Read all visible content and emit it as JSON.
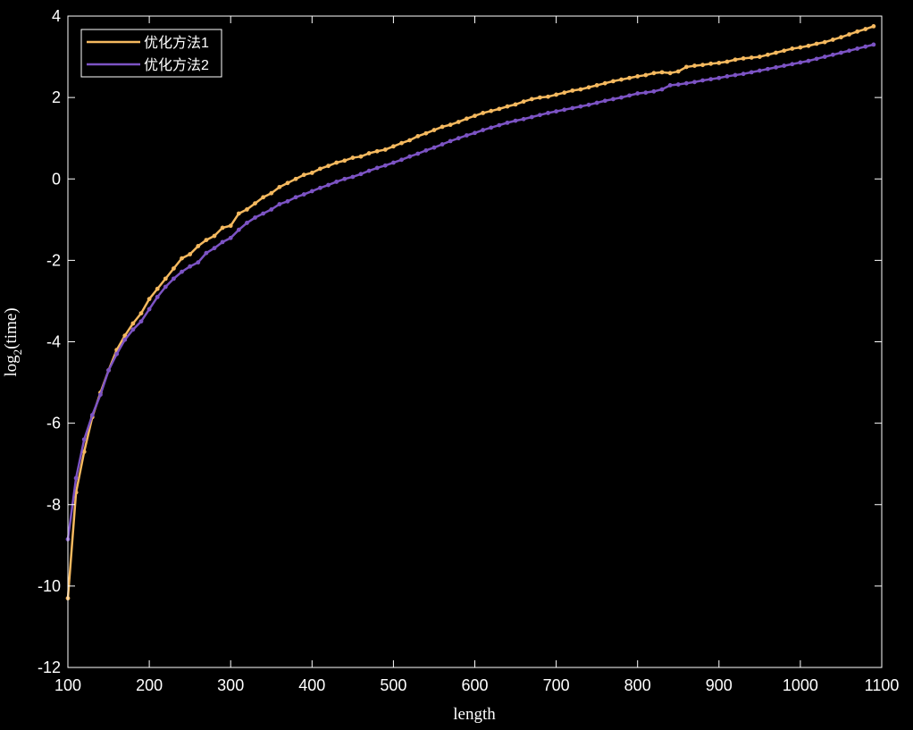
{
  "chart_data": {
    "type": "line",
    "xlabel": "length",
    "ylabel_main": "log",
    "ylabel_sub": "2",
    "ylabel_rest": "(time)",
    "xlim": [
      100,
      1100
    ],
    "ylim": [
      -12,
      4
    ],
    "xticks": [
      100,
      200,
      300,
      400,
      500,
      600,
      700,
      800,
      900,
      1000,
      1100
    ],
    "yticks": [
      -12,
      -10,
      -8,
      -6,
      -4,
      -2,
      0,
      2,
      4
    ],
    "grid": false,
    "legend_position": "top-left",
    "x": [
      100,
      110,
      120,
      130,
      140,
      150,
      160,
      170,
      180,
      190,
      200,
      210,
      220,
      230,
      240,
      250,
      260,
      270,
      280,
      290,
      300,
      310,
      320,
      330,
      340,
      350,
      360,
      370,
      380,
      390,
      400,
      410,
      420,
      430,
      440,
      450,
      460,
      470,
      480,
      490,
      500,
      510,
      520,
      530,
      540,
      550,
      560,
      570,
      580,
      590,
      600,
      610,
      620,
      630,
      640,
      650,
      660,
      670,
      680,
      690,
      700,
      710,
      720,
      730,
      740,
      750,
      760,
      770,
      780,
      790,
      800,
      810,
      820,
      830,
      840,
      850,
      860,
      870,
      880,
      890,
      900,
      910,
      920,
      930,
      940,
      950,
      960,
      970,
      980,
      990,
      1000,
      1010,
      1020,
      1030,
      1040,
      1050,
      1060,
      1070,
      1080,
      1090
    ],
    "series": [
      {
        "name": "优化方法1",
        "color": "#f5b95f",
        "values": [
          -10.3,
          -7.7,
          -6.7,
          -5.85,
          -5.25,
          -4.7,
          -4.2,
          -3.85,
          -3.55,
          -3.3,
          -2.95,
          -2.7,
          -2.45,
          -2.2,
          -1.95,
          -1.85,
          -1.65,
          -1.5,
          -1.4,
          -1.2,
          -1.15,
          -0.85,
          -0.75,
          -0.6,
          -0.45,
          -0.35,
          -0.2,
          -0.1,
          0.0,
          0.1,
          0.15,
          0.25,
          0.32,
          0.4,
          0.45,
          0.52,
          0.55,
          0.63,
          0.68,
          0.72,
          0.8,
          0.88,
          0.95,
          1.05,
          1.12,
          1.2,
          1.28,
          1.33,
          1.4,
          1.48,
          1.55,
          1.62,
          1.67,
          1.72,
          1.78,
          1.83,
          1.9,
          1.96,
          2.0,
          2.02,
          2.07,
          2.12,
          2.17,
          2.2,
          2.25,
          2.3,
          2.35,
          2.4,
          2.44,
          2.48,
          2.52,
          2.55,
          2.6,
          2.62,
          2.6,
          2.64,
          2.75,
          2.78,
          2.8,
          2.83,
          2.85,
          2.88,
          2.93,
          2.96,
          2.98,
          3.0,
          3.05,
          3.1,
          3.15,
          3.2,
          3.23,
          3.27,
          3.32,
          3.36,
          3.42,
          3.48,
          3.55,
          3.62,
          3.68,
          3.75
        ]
      },
      {
        "name": "优化方法2",
        "color": "#7c53c4",
        "values": [
          -8.85,
          -7.35,
          -6.4,
          -5.8,
          -5.3,
          -4.7,
          -4.3,
          -3.95,
          -3.7,
          -3.5,
          -3.2,
          -2.9,
          -2.65,
          -2.45,
          -2.28,
          -2.15,
          -2.05,
          -1.82,
          -1.7,
          -1.55,
          -1.45,
          -1.25,
          -1.08,
          -0.95,
          -0.85,
          -0.75,
          -0.62,
          -0.55,
          -0.45,
          -0.38,
          -0.3,
          -0.22,
          -0.15,
          -0.07,
          0.0,
          0.05,
          0.12,
          0.2,
          0.27,
          0.33,
          0.4,
          0.47,
          0.55,
          0.62,
          0.7,
          0.77,
          0.85,
          0.93,
          1.0,
          1.07,
          1.13,
          1.2,
          1.26,
          1.32,
          1.38,
          1.43,
          1.47,
          1.52,
          1.57,
          1.62,
          1.66,
          1.7,
          1.74,
          1.78,
          1.82,
          1.87,
          1.92,
          1.96,
          2.0,
          2.05,
          2.1,
          2.12,
          2.15,
          2.2,
          2.3,
          2.32,
          2.35,
          2.38,
          2.42,
          2.45,
          2.48,
          2.52,
          2.55,
          2.58,
          2.62,
          2.66,
          2.7,
          2.74,
          2.78,
          2.82,
          2.86,
          2.9,
          2.95,
          3.0,
          3.05,
          3.1,
          3.15,
          3.2,
          3.25,
          3.3
        ]
      }
    ]
  }
}
